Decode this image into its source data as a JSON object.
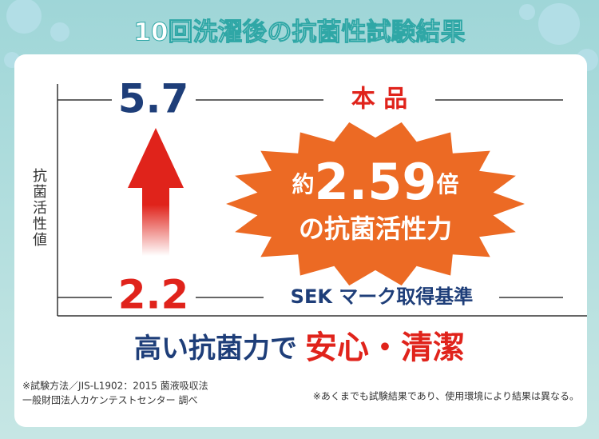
{
  "header": {
    "title": "10回洗濯後の抗菌性試験結果"
  },
  "graph": {
    "axis_label": "抗菌活性値",
    "product": {
      "value": 5.7,
      "label": "本 品"
    },
    "standard": {
      "value": 2.2,
      "label": "SEK マーク取得基準"
    },
    "badge": {
      "prefix": "約",
      "ratio": 2.59,
      "suffix": "倍",
      "line2": "の抗菌活性力"
    }
  },
  "slogan": {
    "part1": "高い抗菌力で",
    "part2": "安心・清潔"
  },
  "notes": {
    "method": "※試験方法／JIS-L1902：2015 菌液吸収法",
    "lab": "一般財団法人カケンテストセンター 調べ",
    "disclaimer": "※あくまでも試験結果であり、使用環境により結果は異なる。"
  }
}
